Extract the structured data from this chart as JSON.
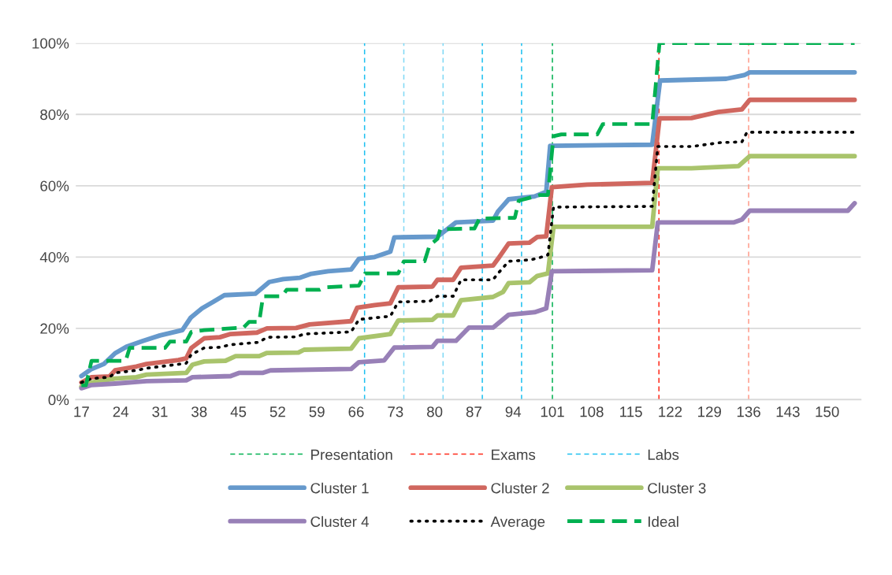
{
  "chart_data": {
    "type": "line",
    "xlim": [
      16,
      156
    ],
    "xticks": [
      17,
      24,
      31,
      38,
      45,
      52,
      59,
      66,
      73,
      80,
      87,
      94,
      101,
      108,
      115,
      122,
      129,
      136,
      143,
      150
    ],
    "ylim": [
      0,
      100
    ],
    "yticks": [
      {
        "value": 0,
        "label": "0%"
      },
      {
        "value": 20,
        "label": "20%"
      },
      {
        "value": 40,
        "label": "40%"
      },
      {
        "value": 60,
        "label": "60%"
      },
      {
        "value": 80,
        "label": "80%"
      },
      {
        "value": 100,
        "label": "100%"
      }
    ],
    "grid": "y",
    "legend": "bottom",
    "ref_lines": [
      {
        "axis": "x",
        "value": 101,
        "label": "Presentation",
        "color": "#00b050",
        "line_style": "dashed"
      },
      {
        "axis": "x",
        "value": 120,
        "label": "Exams",
        "color": "#ff2a1a",
        "line_style": "dashed"
      },
      {
        "axis": "x",
        "value": 136,
        "color": "#ff9a8a",
        "line_style": "dashed"
      },
      {
        "axis": "x",
        "value": 67.5,
        "label": "Labs",
        "color": "#1cc0f0",
        "line_style": "dashed"
      },
      {
        "axis": "x",
        "value": 74.5,
        "color": "#7fd8f5",
        "line_style": "dashed"
      },
      {
        "axis": "x",
        "value": 81.5,
        "color": "#7fd8f5",
        "line_style": "dashed"
      },
      {
        "axis": "x",
        "value": 88.5,
        "color": "#1cc0f0",
        "line_style": "dashed"
      },
      {
        "axis": "x",
        "value": 95.5,
        "color": "#1cc0f0",
        "line_style": "dashed"
      }
    ],
    "series": [
      {
        "name": "Cluster 1",
        "color": "#6699cc",
        "line_style": "solid",
        "x": [
          17,
          18.8,
          21,
          23,
          25,
          28,
          31,
          35,
          36.5,
          38.5,
          40.5,
          42.5,
          48,
          50.5,
          53,
          56,
          58,
          61,
          65.1,
          66.5,
          69.3,
          72.1,
          72.8,
          80.5,
          83.8,
          90.4,
          91.3,
          93.2,
          97.8,
          99.9,
          100.6,
          118.8,
          120.2,
          132,
          135.2,
          136.2,
          154.9
        ],
        "values": [
          6.6,
          8.6,
          10,
          13,
          14.8,
          16.5,
          18,
          19.5,
          23,
          25.6,
          27.4,
          29.3,
          29.7,
          33,
          33.8,
          34.2,
          35.3,
          36,
          36.5,
          39.5,
          40,
          41.5,
          45.5,
          45.7,
          49.7,
          50.2,
          52.8,
          56.2,
          57,
          58.3,
          71.2,
          71.5,
          89.5,
          90,
          91,
          91.8,
          91.8
        ]
      },
      {
        "name": "Cluster 2",
        "color": "#d0675f",
        "line_style": "solid",
        "x": [
          17,
          18.8,
          22,
          23,
          26.8,
          28.6,
          34.3,
          35.7,
          36.6,
          38.9,
          41.7,
          43.6,
          48.3,
          50.1,
          55.3,
          57.7,
          65.1,
          66.2,
          69.3,
          72.1,
          73.5,
          79.6,
          80.5,
          83.3,
          84.7,
          90.4,
          91.3,
          93.2,
          96.9,
          98.3,
          99.9,
          100.9,
          107.2,
          118.8,
          120.1,
          125.8,
          130.6,
          134.8,
          136.2,
          154.9
        ],
        "values": [
          4.8,
          6.3,
          6.5,
          8.2,
          9.3,
          10,
          11.1,
          11.6,
          14.5,
          17.2,
          17.5,
          18.4,
          18.8,
          20,
          20.1,
          21.1,
          22,
          25.8,
          26.5,
          27,
          31.5,
          31.7,
          33.6,
          33.6,
          37,
          37.6,
          39.5,
          43.8,
          44,
          45.6,
          45.8,
          59.6,
          60.3,
          60.8,
          78.9,
          79,
          80.7,
          81.4,
          84.1,
          84.1
        ]
      },
      {
        "name": "Cluster 3",
        "color": "#a9c46c",
        "line_style": "solid",
        "x": [
          17,
          18.8,
          23,
          26.8,
          28.6,
          35.7,
          36.8,
          38.9,
          42.7,
          44.5,
          48.7,
          50.1,
          55.7,
          56.7,
          65.1,
          66.5,
          72.1,
          73.5,
          79.6,
          80.5,
          83.3,
          84.7,
          90.4,
          92.2,
          93.2,
          96.9,
          98.3,
          100.2,
          101.2,
          118.8,
          119.8,
          125.8,
          134.2,
          136.2,
          154.9
        ],
        "values": [
          3.6,
          4.8,
          5.9,
          6.3,
          7,
          7.5,
          9.8,
          10.7,
          10.9,
          12.2,
          12.2,
          13.1,
          13.2,
          14,
          14.3,
          17.2,
          18.4,
          22.2,
          22.4,
          23.6,
          23.6,
          27.9,
          28.8,
          30.2,
          32.7,
          32.9,
          34.7,
          35.4,
          48.5,
          48.5,
          64.9,
          64.9,
          65.5,
          68.3,
          68.3
        ]
      },
      {
        "name": "Cluster 4",
        "color": "#9880b7",
        "line_style": "solid",
        "x": [
          17,
          18.8,
          23,
          28.6,
          35.7,
          36.8,
          43.6,
          45.1,
          49.3,
          50.7,
          65.1,
          66.5,
          71,
          72.8,
          79.6,
          80.5,
          83.8,
          86.1,
          90.4,
          93.2,
          97.8,
          99.9,
          100.9,
          118.8,
          119.8,
          133.3,
          134.8,
          136.2,
          153.7,
          154.9
        ],
        "values": [
          3.2,
          4.1,
          4.5,
          5.2,
          5.4,
          6.3,
          6.6,
          7.5,
          7.5,
          8.2,
          8.6,
          10.5,
          11,
          14.6,
          14.8,
          16.5,
          16.5,
          20.2,
          20.2,
          23.8,
          24.5,
          25.6,
          36,
          36.3,
          49.7,
          49.7,
          50.5,
          53,
          53,
          55.1
        ]
      },
      {
        "name": "Average",
        "color": "#000000",
        "line_style": "dotted",
        "x": [
          17,
          18.8,
          22,
          23,
          26.8,
          28.6,
          34.7,
          35.7,
          36.6,
          38.9,
          41.7,
          43.6,
          48.7,
          50.1,
          55.3,
          56.7,
          65.1,
          66.5,
          72.1,
          73.5,
          79.1,
          80.5,
          83.3,
          84.7,
          90.4,
          91.3,
          93.2,
          96.9,
          98.3,
          100.2,
          101.2,
          118.8,
          119.8,
          125.8,
          131,
          134.8,
          135.7,
          154.9
        ],
        "values": [
          4.8,
          5.9,
          6.3,
          7.5,
          8.2,
          8.8,
          10,
          10.2,
          12.7,
          14.5,
          14.7,
          15.4,
          16.1,
          17.5,
          17.6,
          18.4,
          19,
          22.5,
          23.4,
          27.4,
          27.6,
          29,
          29,
          33.6,
          33.6,
          35.4,
          38.8,
          39.2,
          39.6,
          40.6,
          54,
          54.2,
          71,
          71,
          72.1,
          72.3,
          75,
          75
        ]
      },
      {
        "name": "Ideal",
        "color": "#00b050",
        "line_style": "dashed",
        "x": [
          17,
          17.8,
          18.8,
          24.9,
          25.6,
          31.9,
          32.8,
          35.7,
          36.6,
          38.9,
          45.9,
          46.9,
          48.7,
          49.4,
          52.8,
          53.6,
          59.5,
          60.5,
          66.5,
          67.6,
          73.5,
          74.5,
          78.2,
          79.1,
          80.5,
          81,
          87.1,
          88,
          94.3,
          95,
          98.8,
          100.2,
          101.2,
          102.6,
          109,
          110,
          118.8,
          120.1,
          154.9
        ],
        "values": [
          4,
          4,
          10.9,
          10.9,
          14.5,
          14.5,
          16.3,
          16.3,
          19,
          19.5,
          20.2,
          21.8,
          21.8,
          29,
          29,
          30.8,
          30.8,
          31.5,
          32,
          35.4,
          35.4,
          38.8,
          38.8,
          43.3,
          45.1,
          47.8,
          48,
          50.8,
          51,
          55.8,
          57.4,
          57.4,
          73.9,
          74.4,
          74.4,
          77.3,
          77.3,
          100,
          100
        ]
      }
    ]
  }
}
